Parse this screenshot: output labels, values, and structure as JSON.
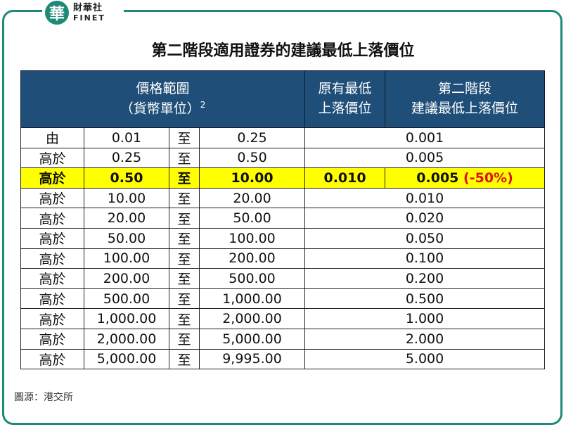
{
  "logo": {
    "glyph": "華",
    "cn": "財華社",
    "en": "FINET"
  },
  "title": "第二階段適用證券的建議最低上落價位",
  "watermark": {
    "glyph": "華",
    "cn": "財華社",
    "en": "FINET"
  },
  "headers": {
    "range_line1": "價格範圍",
    "range_line2": "（貨幣單位）",
    "range_sup": "2",
    "orig_line1": "原有最低",
    "orig_line2": "上落價位",
    "stage2_line1": "第二階段",
    "stage2_line2": "建議最低上落價位"
  },
  "rows": [
    {
      "prefix": "由",
      "from": "0.01",
      "to_word": "至",
      "to": "0.25",
      "orig": "",
      "new": "0.001",
      "change": ""
    },
    {
      "prefix": "高於",
      "from": "0.25",
      "to_word": "至",
      "to": "0.50",
      "orig": "",
      "new": "0.005",
      "change": ""
    },
    {
      "prefix": "高於",
      "from": "0.50",
      "to_word": "至",
      "to": "10.00",
      "orig": "0.010",
      "new": "0.005",
      "change": "(-50%)"
    },
    {
      "prefix": "高於",
      "from": "10.00",
      "to_word": "至",
      "to": "20.00",
      "orig": "",
      "new": "0.010",
      "change": ""
    },
    {
      "prefix": "高於",
      "from": "20.00",
      "to_word": "至",
      "to": "50.00",
      "orig": "",
      "new": "0.020",
      "change": ""
    },
    {
      "prefix": "高於",
      "from": "50.00",
      "to_word": "至",
      "to": "100.00",
      "orig": "",
      "new": "0.050",
      "change": ""
    },
    {
      "prefix": "高於",
      "from": "100.00",
      "to_word": "至",
      "to": "200.00",
      "orig": "",
      "new": "0.100",
      "change": ""
    },
    {
      "prefix": "高於",
      "from": "200.00",
      "to_word": "至",
      "to": "500.00",
      "orig": "",
      "new": "0.200",
      "change": ""
    },
    {
      "prefix": "高於",
      "from": "500.00",
      "to_word": "至",
      "to": "1,000.00",
      "orig": "",
      "new": "0.500",
      "change": ""
    },
    {
      "prefix": "高於",
      "from": "1,000.00",
      "to_word": "至",
      "to": "2,000.00",
      "orig": "",
      "new": "1.000",
      "change": ""
    },
    {
      "prefix": "高於",
      "from": "2,000.00",
      "to_word": "至",
      "to": "5,000.00",
      "orig": "",
      "new": "2.000",
      "change": ""
    },
    {
      "prefix": "高於",
      "from": "5,000.00",
      "to_word": "至",
      "to": "9,995.00",
      "orig": "",
      "new": "5.000",
      "change": ""
    }
  ],
  "highlight_row_index": 2,
  "source": "圖源：港交所",
  "colors": {
    "frame": "#1c8a74",
    "header_bg": "#1f4e79",
    "highlight": "#ffff00",
    "change_text": "#e01010"
  }
}
